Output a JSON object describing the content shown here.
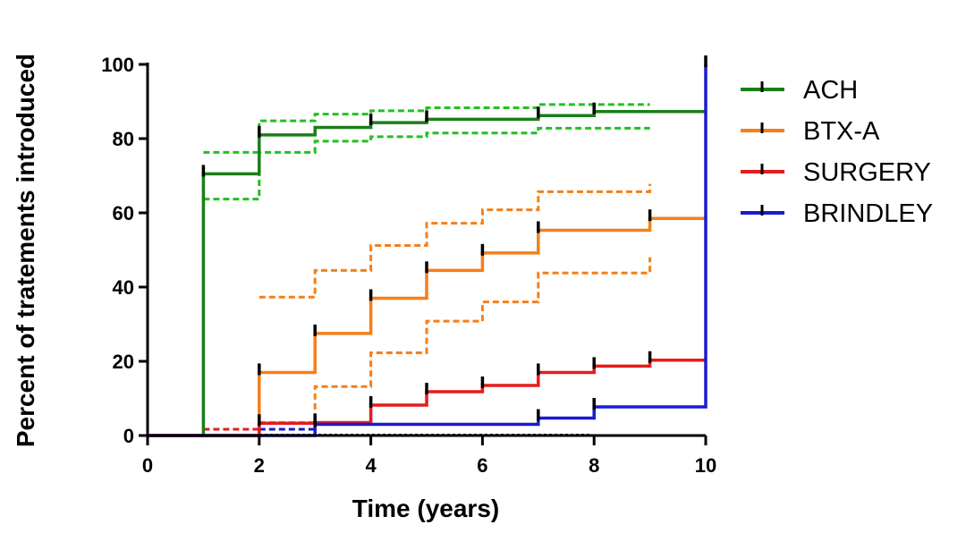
{
  "chart_data": {
    "type": "line",
    "step": true,
    "xlabel": "Time (years)",
    "ylabel": "Percent of tratements introduced",
    "xlim": [
      0,
      10
    ],
    "ylim": [
      0,
      100
    ],
    "xticks": [
      0,
      2,
      4,
      6,
      8,
      10
    ],
    "yticks": [
      0,
      20,
      40,
      60,
      80,
      100
    ],
    "xtick_labels": [
      "0",
      "2",
      "4",
      "6",
      "8",
      "10"
    ],
    "ytick_labels": [
      "0",
      "20",
      "40",
      "60",
      "80",
      "100"
    ],
    "grid": false,
    "legend_position": "right",
    "series": [
      {
        "name": "ACH",
        "color": "#1a7f1a",
        "points": [
          [
            0,
            0
          ],
          [
            1,
            0
          ],
          [
            1,
            70.5
          ],
          [
            2,
            70.5
          ],
          [
            2,
            81
          ],
          [
            3,
            81
          ],
          [
            3,
            83
          ],
          [
            4,
            83
          ],
          [
            4,
            84.3
          ],
          [
            5,
            84.3
          ],
          [
            5,
            85.2
          ],
          [
            7,
            85.2
          ],
          [
            7,
            86.2
          ],
          [
            8,
            86.2
          ],
          [
            8,
            87.3
          ],
          [
            10,
            87.3
          ]
        ],
        "censor_x": [
          1,
          2,
          4,
          5,
          7,
          8
        ],
        "ci_upper": [
          [
            1,
            76.3
          ],
          [
            2,
            76.3
          ],
          [
            2,
            84.8
          ],
          [
            3,
            84.8
          ],
          [
            3,
            86.6
          ],
          [
            4,
            86.6
          ],
          [
            4,
            87.5
          ],
          [
            5,
            87.5
          ],
          [
            5,
            88.3
          ],
          [
            7,
            88.3
          ],
          [
            7,
            89.2
          ],
          [
            9,
            89.2
          ]
        ],
        "ci_lower": [
          [
            1,
            63.7
          ],
          [
            2,
            63.7
          ],
          [
            2,
            76.3
          ],
          [
            3,
            76.3
          ],
          [
            3,
            79.3
          ],
          [
            4,
            79.3
          ],
          [
            4,
            80.5
          ],
          [
            5,
            80.5
          ],
          [
            5,
            81.5
          ],
          [
            7,
            81.5
          ],
          [
            7,
            82.8
          ],
          [
            9,
            82.8
          ]
        ],
        "ci_color": "#22c022"
      },
      {
        "name": "BTX-A",
        "color": "#f47f1a",
        "points": [
          [
            0,
            0
          ],
          [
            2,
            0
          ],
          [
            2,
            17
          ],
          [
            3,
            17
          ],
          [
            3,
            27.5
          ],
          [
            4,
            27.5
          ],
          [
            4,
            37
          ],
          [
            5,
            37
          ],
          [
            5,
            44.5
          ],
          [
            6,
            44.5
          ],
          [
            6,
            49.2
          ],
          [
            7,
            49.2
          ],
          [
            7,
            55.3
          ],
          [
            9,
            55.3
          ],
          [
            9,
            58.5
          ],
          [
            10,
            58.5
          ]
        ],
        "censor_x": [
          2,
          3,
          4,
          5,
          6,
          7,
          9
        ],
        "ci_upper": [
          [
            2,
            37.3
          ],
          [
            3,
            37.3
          ],
          [
            3,
            44.5
          ],
          [
            4,
            44.5
          ],
          [
            4,
            51.2
          ],
          [
            5,
            51.2
          ],
          [
            5,
            57.2
          ],
          [
            6,
            57.2
          ],
          [
            6,
            60.8
          ],
          [
            7,
            60.8
          ],
          [
            7,
            65.7
          ],
          [
            9,
            65.7
          ],
          [
            9,
            67.8
          ]
        ],
        "ci_lower": [
          [
            2,
            3.5
          ],
          [
            3,
            3.5
          ],
          [
            3,
            13.2
          ],
          [
            4,
            13.2
          ],
          [
            4,
            22.3
          ],
          [
            5,
            22.3
          ],
          [
            5,
            30.8
          ],
          [
            6,
            30.8
          ],
          [
            6,
            36
          ],
          [
            7,
            36
          ],
          [
            7,
            43.8
          ],
          [
            9,
            43.8
          ],
          [
            9,
            48
          ]
        ],
        "ci_color": "#f47f1a"
      },
      {
        "name": "SURGERY",
        "color": "#e51c1c",
        "points": [
          [
            0,
            0
          ],
          [
            2,
            0
          ],
          [
            2,
            3.3
          ],
          [
            3,
            3.3
          ],
          [
            3,
            3.5
          ],
          [
            4,
            3.5
          ],
          [
            4,
            8.2
          ],
          [
            5,
            8.2
          ],
          [
            5,
            11.8
          ],
          [
            6,
            11.8
          ],
          [
            6,
            13.5
          ],
          [
            7,
            13.5
          ],
          [
            7,
            17
          ],
          [
            8,
            17
          ],
          [
            8,
            18.7
          ],
          [
            9,
            18.7
          ],
          [
            9,
            20.3
          ],
          [
            10,
            20.3
          ]
        ],
        "censor_x": [
          2,
          3,
          4,
          5,
          6,
          7,
          8,
          9
        ],
        "ci_upper": [
          [
            1,
            1.7
          ],
          [
            2,
            1.7
          ]
        ],
        "ci_lower": [],
        "ci_color": "#e51c1c"
      },
      {
        "name": "BRINDLEY",
        "color": "#1a1acf",
        "points": [
          [
            0,
            0
          ],
          [
            3,
            0
          ],
          [
            3,
            3
          ],
          [
            7,
            3
          ],
          [
            7,
            4.7
          ],
          [
            8,
            4.7
          ],
          [
            8,
            7.7
          ],
          [
            10,
            7.7
          ],
          [
            10,
            100
          ]
        ],
        "censor_x": [
          3,
          7,
          8,
          10
        ],
        "ci_upper": [
          [
            2,
            1.7
          ],
          [
            3,
            1.7
          ]
        ],
        "ci_lower": [],
        "ci_color": "#1a1acf"
      }
    ]
  }
}
